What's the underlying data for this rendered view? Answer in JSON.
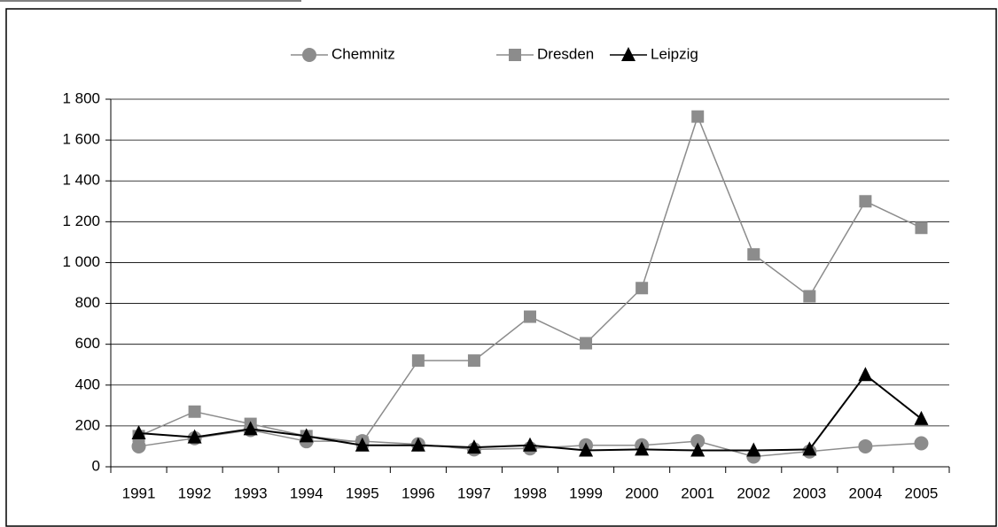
{
  "chart_data": {
    "type": "line",
    "categories": [
      "1991",
      "1992",
      "1993",
      "1994",
      "1995",
      "1996",
      "1997",
      "1998",
      "1999",
      "2000",
      "2001",
      "2002",
      "2003",
      "2004",
      "2005"
    ],
    "series": [
      {
        "name": "Chemnitz",
        "color": "#8c8c8c",
        "marker": "circle",
        "values": [
          100,
          140,
          180,
          125,
          125,
          110,
          85,
          90,
          105,
          105,
          125,
          50,
          75,
          100,
          115
        ]
      },
      {
        "name": "Dresden",
        "color": "#8c8c8c",
        "marker": "square",
        "values": [
          150,
          270,
          210,
          150,
          120,
          520,
          520,
          735,
          605,
          875,
          1715,
          1040,
          835,
          1300,
          1170
        ]
      },
      {
        "name": "Leipzig",
        "color": "#000000",
        "marker": "triangle",
        "values": [
          165,
          145,
          185,
          150,
          105,
          105,
          95,
          105,
          80,
          85,
          80,
          80,
          85,
          450,
          235
        ]
      }
    ],
    "ylim": [
      0,
      1800
    ],
    "yticks": [
      0,
      200,
      400,
      600,
      800,
      {
        "value": 1000,
        "label": "1 000"
      },
      {
        "value": 1200,
        "label": "1 200"
      },
      {
        "value": 1400,
        "label": "1 400"
      },
      {
        "value": 1600,
        "label": "1 600"
      },
      {
        "value": 1800,
        "label": "1 800"
      }
    ],
    "grid": true,
    "legend": "top"
  }
}
